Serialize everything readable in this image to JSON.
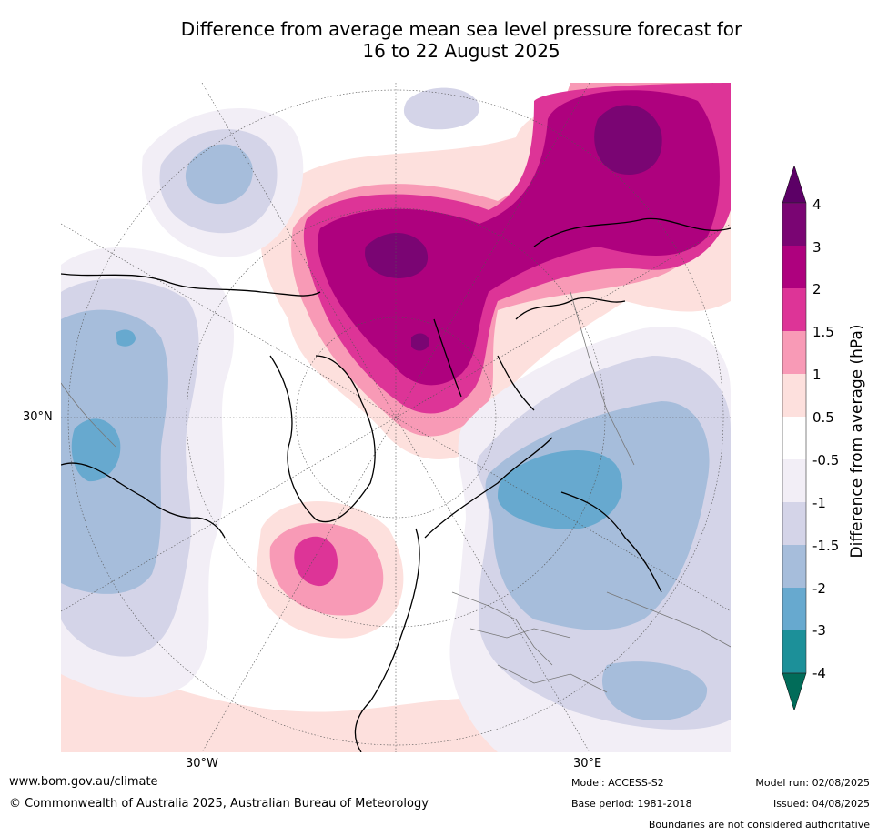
{
  "title_line1": "Difference from average mean sea level pressure forecast for",
  "title_line2": "16 to 22 August 2025",
  "axis_labels": {
    "lat_30n": "30°N",
    "lon_30w": "30°W",
    "lon_30e": "30°E"
  },
  "colorbar": {
    "title": "Difference from average (hPa)",
    "ticks": [
      "4",
      "3",
      "2",
      "1.5",
      "1",
      "0.5",
      "-0.5",
      "-1",
      "-1.5",
      "-2",
      "-3",
      "-4"
    ],
    "colors_top_to_bottom": [
      "#5c0066",
      "#7a0573",
      "#ae017e",
      "#dd3497",
      "#f89ab6",
      "#fde0dd",
      "#ffffff",
      "#f2eef6",
      "#d4d4e8",
      "#a6bddb",
      "#67a9cf",
      "#1c9099",
      "#016c59"
    ]
  },
  "footer": {
    "website": "www.bom.gov.au/climate",
    "copyright": "© Commonwealth of Australia 2025, Australian Bureau of Meteorology",
    "model": "Model: ACCESS-S2",
    "base_period": "Base period: 1981-2018",
    "model_run": "Model run: 02/08/2025",
    "issued": "Issued: 04/08/2025",
    "disclaimer": "Boundaries are not considered authoritative"
  }
}
